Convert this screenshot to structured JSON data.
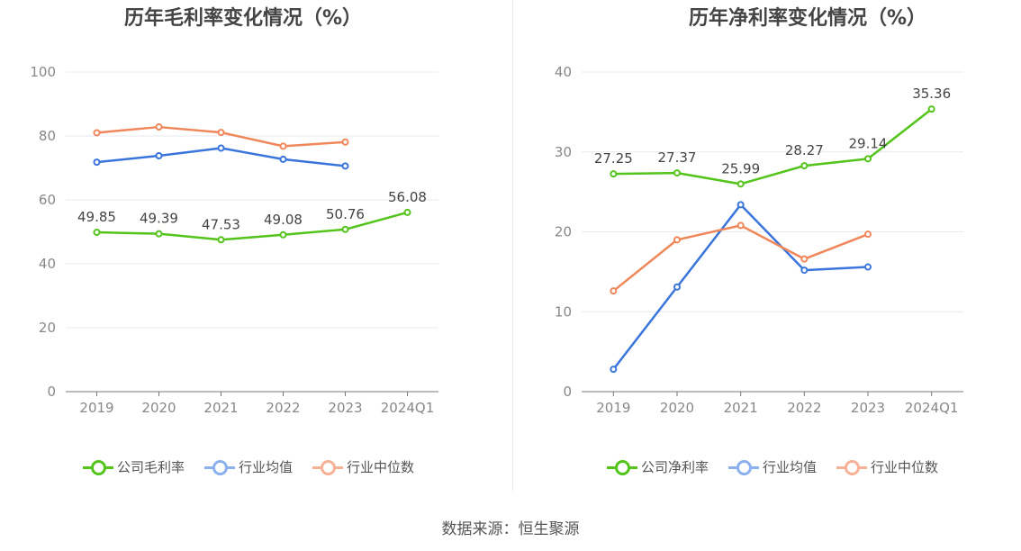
{
  "source": "数据来源：恒生聚源",
  "chart_data": [
    {
      "type": "line",
      "title": "历年毛利率变化情况（%）",
      "categories": [
        "2019",
        "2020",
        "2021",
        "2022",
        "2023",
        "2024Q1"
      ],
      "ylim": [
        0,
        100
      ],
      "yticks": [
        0,
        20,
        40,
        60,
        80,
        100
      ],
      "grid": true,
      "legend_position": "bottom",
      "series": [
        {
          "name": "公司毛利率",
          "color": "#52c41a",
          "labeled": true,
          "values": [
            49.85,
            49.39,
            47.53,
            49.08,
            50.76,
            56.08
          ]
        },
        {
          "name": "行业均值",
          "color": "#3a75dc",
          "legend_color": "#8cb0ee",
          "labeled": false,
          "values": [
            71.8,
            73.8,
            76.2,
            72.7,
            70.6,
            null
          ]
        },
        {
          "name": "行业中位数",
          "color": "#f0875a",
          "legend_color": "#f6b196",
          "labeled": false,
          "values": [
            81.0,
            82.8,
            81.1,
            76.8,
            78.1,
            null
          ]
        }
      ]
    },
    {
      "type": "line",
      "title": "历年净利率变化情况（%）",
      "categories": [
        "2019",
        "2020",
        "2021",
        "2022",
        "2023",
        "2024Q1"
      ],
      "ylim": [
        0,
        40
      ],
      "yticks": [
        0,
        10,
        20,
        30,
        40
      ],
      "grid": true,
      "legend_position": "bottom",
      "series": [
        {
          "name": "公司净利率",
          "color": "#52c41a",
          "labeled": true,
          "values": [
            27.25,
            27.37,
            25.99,
            28.27,
            29.14,
            35.36
          ]
        },
        {
          "name": "行业均值",
          "color": "#3a75dc",
          "legend_color": "#8cb0ee",
          "labeled": false,
          "values": [
            2.8,
            13.1,
            23.4,
            15.2,
            15.6,
            null
          ]
        },
        {
          "name": "行业中位数",
          "color": "#f0875a",
          "legend_color": "#f6b196",
          "labeled": false,
          "values": [
            12.6,
            19.0,
            20.8,
            16.6,
            19.7,
            null
          ]
        }
      ]
    }
  ]
}
